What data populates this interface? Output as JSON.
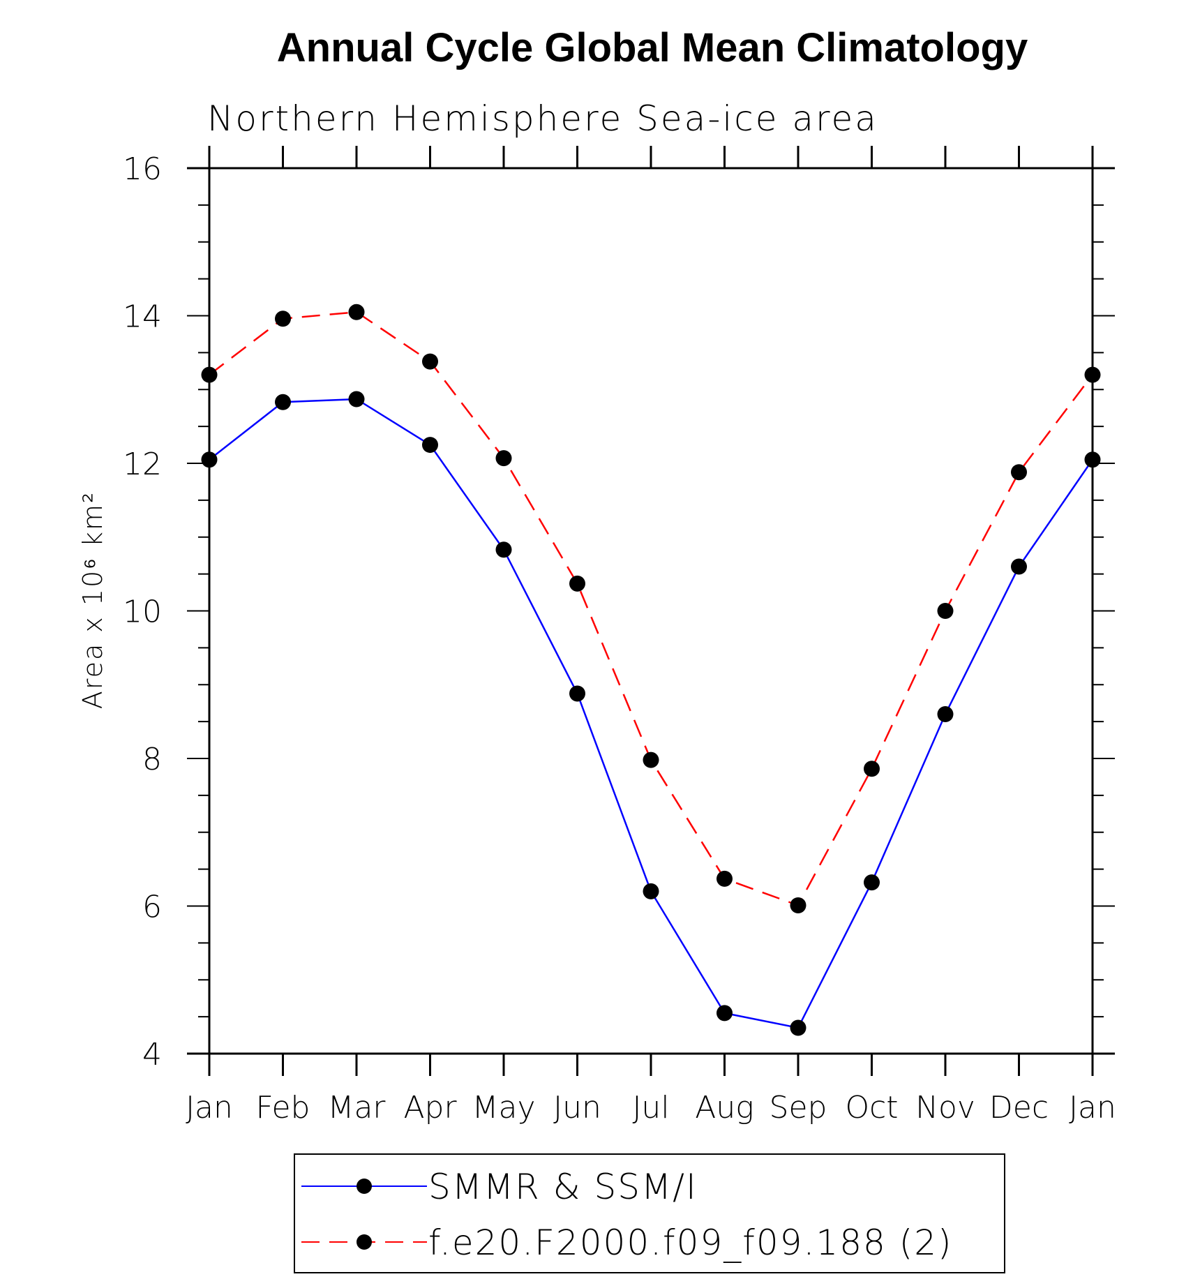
{
  "chart_data": {
    "type": "line",
    "title": "Annual Cycle Global Mean Climatology",
    "subtitle": "Northern Hemisphere Sea-ice area",
    "xlabel": "",
    "ylabel": "Area x 10⁶ km²",
    "categories": [
      "Jan",
      "Feb",
      "Mar",
      "Apr",
      "May",
      "Jun",
      "Jul",
      "Aug",
      "Sep",
      "Oct",
      "Nov",
      "Dec",
      "Jan"
    ],
    "ylim": [
      4,
      16
    ],
    "yticks": [
      "4",
      "6",
      "8",
      "10",
      "12",
      "14",
      "16"
    ],
    "series": [
      {
        "name": "SMMR & SSM/I",
        "color": "#0000ff",
        "style": "solid",
        "values": [
          12.05,
          12.83,
          12.87,
          12.25,
          10.83,
          8.88,
          6.2,
          4.55,
          4.35,
          6.32,
          8.6,
          10.6,
          12.05
        ]
      },
      {
        "name": "f.e20.F2000.f09_f09.188 (2)",
        "color": "#ff0000",
        "style": "dashed",
        "values": [
          13.2,
          13.96,
          14.05,
          13.38,
          12.07,
          10.37,
          7.98,
          6.37,
          6.01,
          7.86,
          10.0,
          11.88,
          13.2
        ]
      }
    ]
  }
}
